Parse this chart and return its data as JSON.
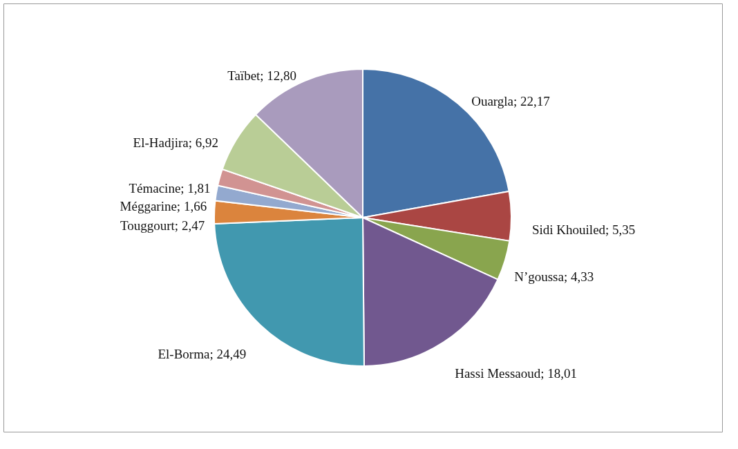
{
  "chart_data": {
    "type": "pie",
    "categories": [
      "Ouargla",
      "Sidi Khouiled",
      "N’goussa",
      "Hassi Messaoud",
      "El-Borma",
      "Touggourt",
      "Méggarine",
      "Témacine",
      "El-Hadjira",
      "Taïbet"
    ],
    "values": [
      22.17,
      5.35,
      4.33,
      18.01,
      24.49,
      2.47,
      1.66,
      1.81,
      6.92,
      12.8
    ],
    "value_labels": [
      "22,17",
      "5,35",
      "4,33",
      "18,01",
      "24,49",
      "2,47",
      "1,66",
      "1,81",
      "6,92",
      "12,80"
    ],
    "colors": [
      "#4572a7",
      "#aa4643",
      "#89a54e",
      "#71588f",
      "#4198af",
      "#db843d",
      "#93a9cf",
      "#d19392",
      "#b9cd96",
      "#a99bbd"
    ]
  }
}
